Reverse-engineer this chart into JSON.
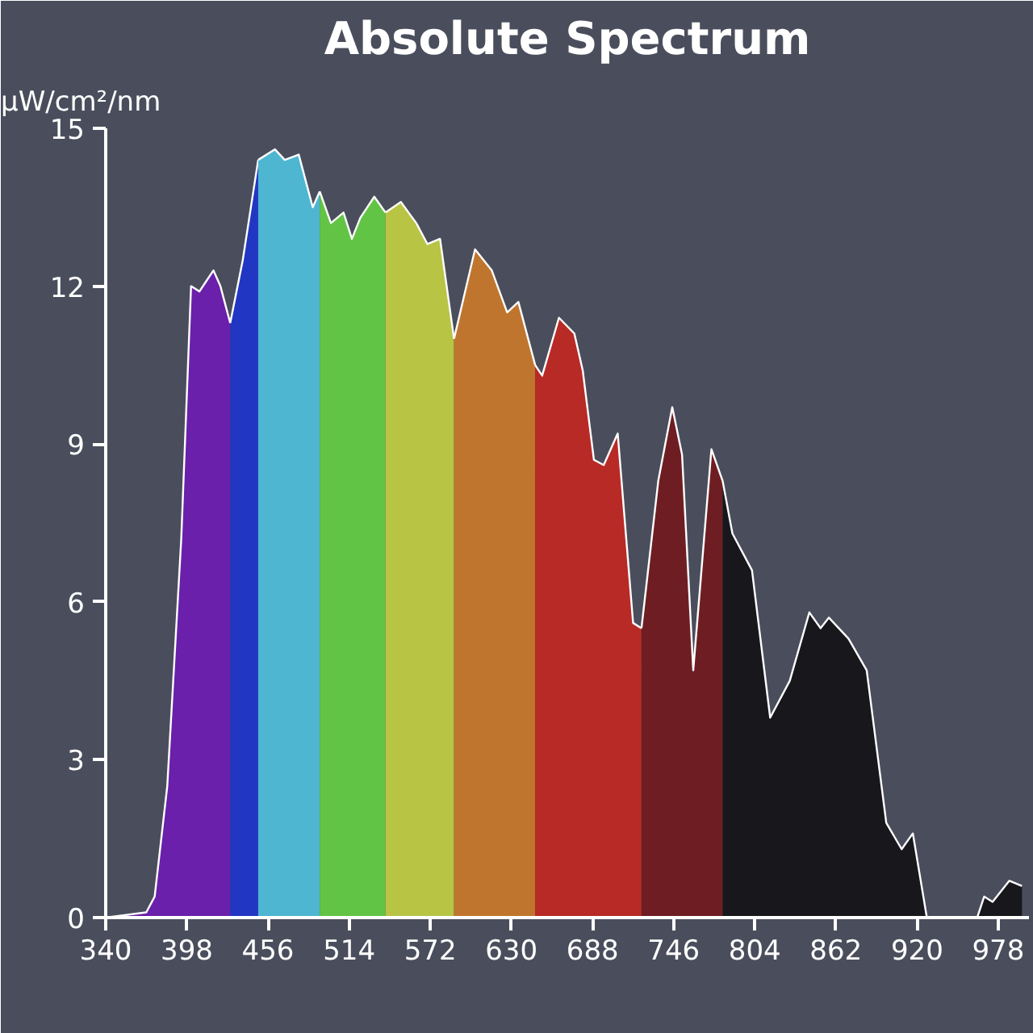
{
  "chart_data": {
    "type": "area",
    "title": "Absolute Spectrum",
    "ylabel": "μW/cm²/nm",
    "xlim": [
      340,
      1000
    ],
    "xticks": [
      340,
      398,
      456,
      514,
      572,
      630,
      688,
      746,
      804,
      862,
      920,
      978
    ],
    "ylim": [
      0,
      15
    ],
    "yticks": [
      0,
      3,
      6,
      9,
      12,
      15
    ],
    "grid": false,
    "series": [
      {
        "color": "#6a20aa",
        "x": [
          340,
          369,
          375,
          384,
          394,
          401,
          407,
          417,
          422,
          429
        ],
        "values": [
          0,
          0.1,
          0.4,
          2.5,
          7.2,
          12.0,
          11.9,
          12.3,
          12.0,
          11.3
        ]
      },
      {
        "color": "#2236c4",
        "x": [
          429,
          438,
          449
        ],
        "values": [
          11.3,
          12.5,
          14.4
        ]
      },
      {
        "color": "#4fb6d2",
        "x": [
          449,
          461,
          468,
          478,
          488,
          493
        ],
        "values": [
          14.4,
          14.6,
          14.4,
          14.5,
          13.5,
          13.8
        ]
      },
      {
        "color": "#62c444",
        "x": [
          493,
          501,
          510,
          516,
          522,
          532,
          540
        ],
        "values": [
          13.8,
          13.2,
          13.4,
          12.9,
          13.3,
          13.7,
          13.4
        ]
      },
      {
        "color": "#b8c444",
        "x": [
          540,
          551,
          562,
          570,
          579,
          589
        ],
        "values": [
          13.4,
          13.6,
          13.2,
          12.8,
          12.9,
          11.0
        ]
      },
      {
        "color": "#c0752e",
        "x": [
          589,
          604,
          616,
          627,
          635,
          647
        ],
        "values": [
          11.0,
          12.7,
          12.3,
          11.5,
          11.7,
          10.5
        ]
      },
      {
        "color": "#b82a26",
        "x": [
          647,
          652,
          664,
          675,
          681,
          689,
          696,
          706,
          717,
          723
        ],
        "values": [
          10.5,
          10.3,
          11.4,
          11.1,
          10.4,
          8.7,
          8.6,
          9.2,
          5.6,
          5.5
        ]
      },
      {
        "color": "#6e1e22",
        "x": [
          723,
          735,
          745,
          752,
          760,
          773,
          781
        ],
        "values": [
          5.5,
          8.3,
          9.7,
          8.8,
          4.7,
          8.9,
          8.3
        ]
      },
      {
        "color": "#17171c",
        "x": [
          781,
          788,
          802,
          815,
          829,
          843,
          851,
          857,
          871,
          884,
          898,
          909,
          917,
          927,
          963,
          968,
          974,
          986,
          995
        ],
        "values": [
          8.3,
          7.3,
          6.6,
          3.8,
          4.5,
          5.8,
          5.5,
          5.7,
          5.3,
          4.7,
          1.8,
          1.3,
          1.6,
          0,
          0,
          0.4,
          0.3,
          0.7,
          0.6
        ]
      }
    ]
  }
}
